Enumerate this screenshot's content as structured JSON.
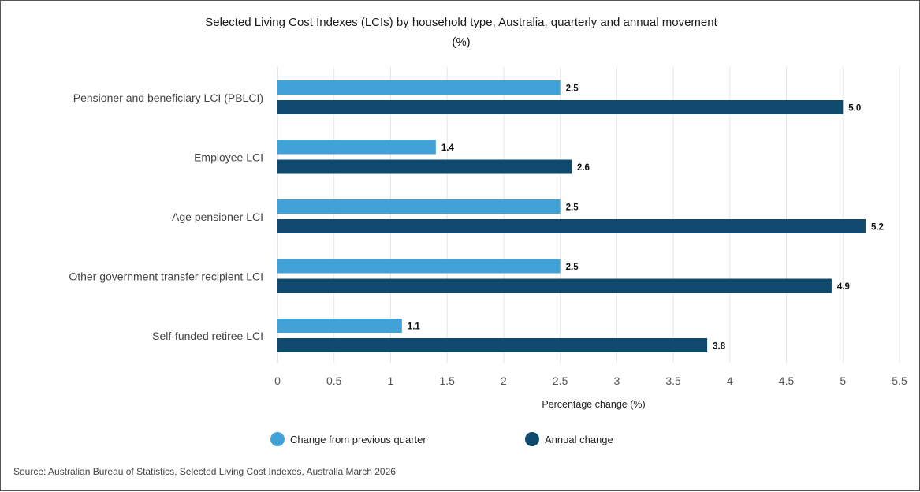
{
  "colors": {
    "quarter": "#41a2d8",
    "annual": "#0f4a6e",
    "grid": "#e6e6e6",
    "axis": "#cccccc"
  },
  "chart_data": {
    "type": "bar",
    "orientation": "horizontal",
    "title": "Selected Living Cost Indexes (LCIs) by household type, Australia, quarterly and annual movement",
    "subtitle": "(%)",
    "categories": [
      "Pensioner and beneficiary LCI (PBLCI)",
      "Employee LCI",
      "Age pensioner LCI",
      "Other government transfer recipient LCI",
      "Self-funded retiree LCI"
    ],
    "series": [
      {
        "name": "Change from previous quarter",
        "values": [
          2.5,
          1.4,
          2.5,
          2.5,
          1.1
        ],
        "labels": [
          "2.5",
          "1.4",
          "2.5",
          "2.5",
          "1.1"
        ]
      },
      {
        "name": "Annual change",
        "values": [
          5.0,
          2.6,
          5.2,
          4.9,
          3.8
        ],
        "labels": [
          "5.0",
          "2.6",
          "5.2",
          "4.9",
          "3.8"
        ]
      }
    ],
    "xlabel": "Percentage change (%)",
    "ylabel": "",
    "xlim": [
      0,
      5.5
    ],
    "xticks": [
      "0",
      "0.5",
      "1",
      "1.5",
      "2",
      "2.5",
      "3",
      "3.5",
      "4",
      "4.5",
      "5",
      "5.5"
    ],
    "grid": true,
    "legend_position": "bottom"
  },
  "source": "Source: Australian Bureau of Statistics, Selected Living Cost Indexes, Australia March 2026"
}
